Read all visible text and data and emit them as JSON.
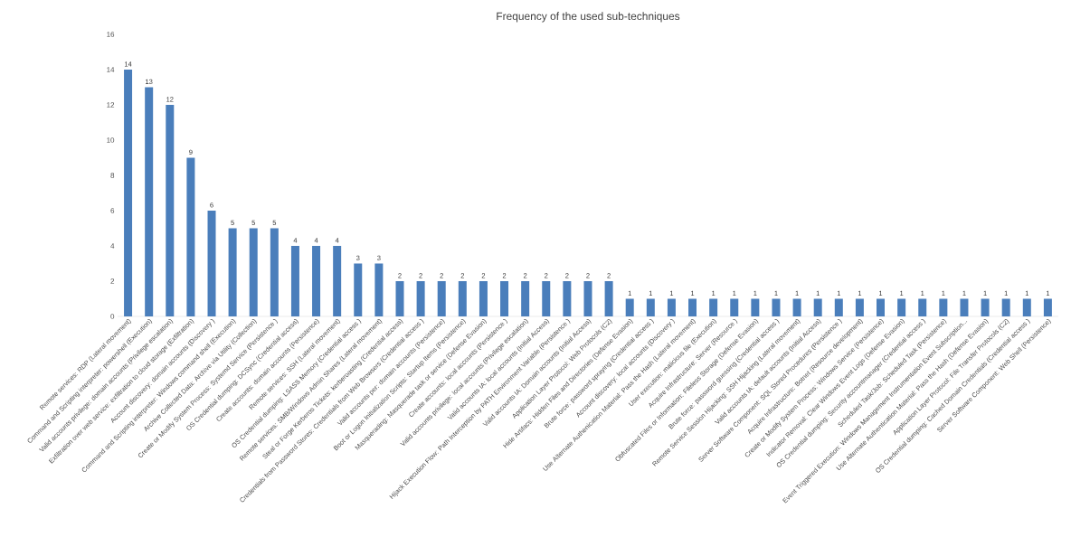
{
  "chart_data": {
    "type": "bar",
    "title": "Frequency of the used sub-techniques",
    "color": "#4a7ebb",
    "data_labels": true,
    "ylim": [
      0,
      16
    ],
    "yticks": [
      0,
      2,
      4,
      6,
      8,
      10,
      12,
      14,
      16
    ],
    "categories": [
      "Remote services: RDP (Lateral movement)",
      "Command and Scripting interpreter: powershell (Execution)",
      "Valid accounts privilege: domain accounts (Privilege escalation)",
      "Exfiltration over web service: exfiltration to cloud storage (Exfiltration)",
      "Account discovery: domain accounts (Discovery )",
      "Command and Scripting interpreter: Windows command shell (Execution)",
      "Archive Collected Data: Archive via Utility (Collection)",
      "Create or Modify System Process: Systemd Service (Persistence )",
      "OS Credential dumping: DCSync (Credential access)",
      "Create accounts: domain accounts (Persistence)",
      "Remote services: SSH (Lateral movement)",
      "OS Credential dumping: LSASS Memory (Credential access )",
      "Remote services: SMB/Windows Admin Shares (Lateral movement)",
      "Steal or Forge Kerberos Tickets: kerberoasting (Credential access)",
      "Credentials from Password Stores: Credentials from Web Browsers (Credential access )",
      "Valid accounts per: domain accounts (Persistence)",
      "Boot or Logon Initialization Scripts: Startup Items (Persistence)",
      "Masquerading: Masquerade task or service (Defense Evasion)",
      "Create accounts: local accounts (Persistence )",
      "Valid accounts privilege: local accounts (Privilege escalation)",
      "Valid accounts IA: local accounts (Initial Access)",
      "Hijack Execution Flow: Path Interception by PATH Environment Variable (Persistence )",
      "Valid accounts IA: Domain accounts (Initial Access)",
      "Application Layer Protocol: Web Protocols (C2)",
      "Hide Artifacs: Hidden Files and Directories (Defense Evasion)",
      "Brute force: password spraying (Credential access )",
      "Account discovery: local accounts (Discovery )",
      "Use Alternate Authenication Material: Pass the Hash (Lateral movement)",
      "User execution: malicious file (Execution)",
      "Acquire Infrastructure: Server (Resource )",
      "Obfuscated Files or Information: Fileless Storage (Defense Evasion)",
      "Brute force: password guessing (Credential access )",
      "Remote Service Session Hijacking: SSH Hijacking (Lateral movement)",
      "Valid accounts IA: default accounts (Initial Access)",
      "Server Software Component: SQL Stored Procedures (Persistence )",
      "Acquire Infrastructure: Botnet (Resource development)",
      "Create or Modify System Process: Windows Service (Persistence)",
      "Indicator Removal: Clear Windows Event Logs (Defense Evasion)",
      "OS Credential dumping: Security accountmanager (Credential access )",
      "Scheduled Task/Job: Scheduled Task (Persistence)",
      "Event Triggered Execution: Windows Management Instrumentation Event Subscription...",
      "Use Alternate Authentication Material: Pass the Hash (Defense Evasion)",
      "Application Layer Protocol: File Transfer Protocols (C2)",
      "OS Credential dumping: Cached Domain Credentials (Credential access )",
      "Server Software Component: Web Shell (Persistence)"
    ],
    "values": [
      14,
      13,
      12,
      9,
      6,
      5,
      5,
      5,
      4,
      4,
      4,
      3,
      3,
      2,
      2,
      2,
      2,
      2,
      2,
      2,
      2,
      2,
      2,
      2,
      1,
      1,
      1,
      1,
      1,
      1,
      1,
      1,
      1,
      1,
      1,
      1,
      1,
      1,
      1,
      1,
      1,
      1,
      1,
      1,
      1
    ]
  }
}
